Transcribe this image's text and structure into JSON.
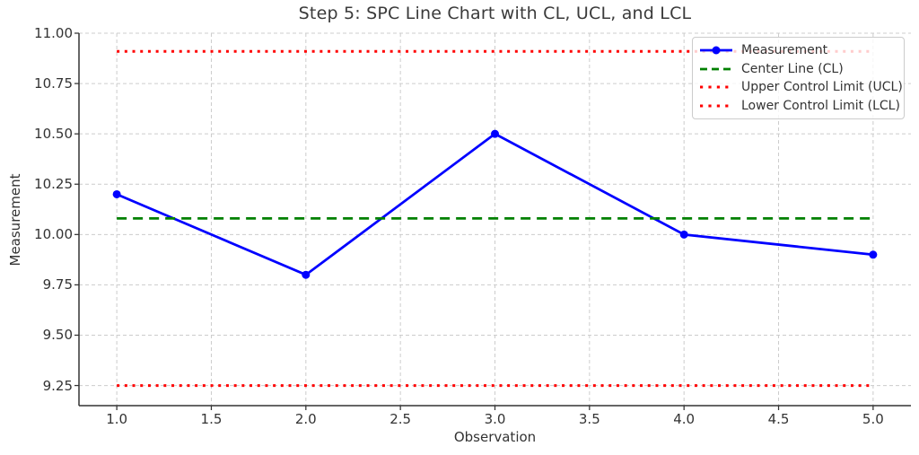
{
  "figure": {
    "title": "Step 5: SPC Line Chart with CL, UCL, and LCL"
  },
  "chart_data": {
    "type": "line",
    "title": "Step 5: SPC Line Chart with CL, UCL, and LCL",
    "xlabel": "Observation",
    "ylabel": "Measurement",
    "x": [
      1,
      2,
      3,
      4,
      5
    ],
    "series": [
      {
        "name": "Measurement",
        "y": [
          10.2,
          9.8,
          10.5,
          10.0,
          9.9
        ],
        "color": "#0000ff",
        "style": "solid",
        "marker": "circle"
      },
      {
        "name": "Center Line (CL)",
        "constant": 10.08,
        "color": "#008000",
        "style": "dashed"
      },
      {
        "name": "Upper Control Limit (UCL)",
        "constant": 10.91,
        "color": "#ff0000",
        "style": "dotted"
      },
      {
        "name": "Lower Control Limit (LCL)",
        "constant": 9.25,
        "color": "#ff0000",
        "style": "dotted"
      }
    ],
    "cl": 10.08,
    "ucl": 10.91,
    "lcl": 9.25,
    "xlim": [
      0.8,
      5.2
    ],
    "ylim": [
      9.15,
      11.0
    ],
    "xtick_values": [
      1.0,
      1.5,
      2.0,
      2.5,
      3.0,
      3.5,
      4.0,
      4.5,
      5.0
    ],
    "xtick_labels": [
      "1.0",
      "1.5",
      "2.0",
      "2.5",
      "3.0",
      "3.5",
      "4.0",
      "4.5",
      "5.0"
    ],
    "ytick_values": [
      9.25,
      9.5,
      9.75,
      10.0,
      10.25,
      10.5,
      10.75,
      11.0
    ],
    "ytick_labels": [
      "9.25",
      "9.50",
      "9.75",
      "10.00",
      "10.25",
      "10.50",
      "10.75",
      "11.00"
    ],
    "grid": true,
    "grid_color": "#cccccc",
    "legend_position": "upper right",
    "text_color": "#333333",
    "spine_color": "#333333",
    "background_color": "#ffffff"
  }
}
